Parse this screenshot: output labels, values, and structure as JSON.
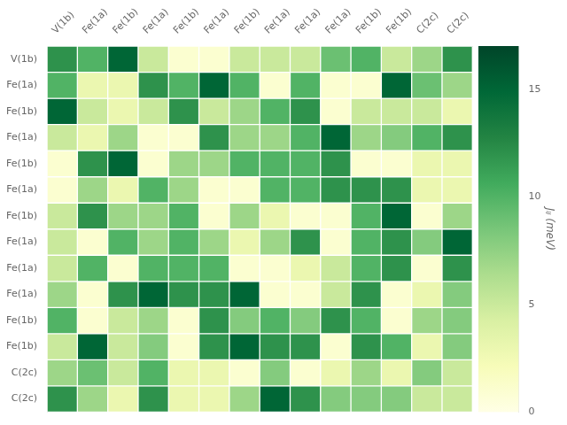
{
  "chart_data": {
    "type": "heatmap",
    "categories": [
      "V(1b)",
      "Fe(1a)",
      "Fe(1b)",
      "Fe(1a)",
      "Fe(1b)",
      "Fe(1a)",
      "Fe(1b)",
      "Fe(1a)",
      "Fe(1a)",
      "Fe(1a)",
      "Fe(1b)",
      "Fe(1b)",
      "C(2c)",
      "C(2c)"
    ],
    "values": [
      [
        12,
        10,
        15,
        5,
        1,
        1,
        5,
        5,
        5,
        9,
        10,
        5,
        7,
        12
      ],
      [
        10,
        3,
        3,
        12,
        10,
        15,
        10,
        1,
        10,
        1,
        1,
        15,
        9,
        7
      ],
      [
        15,
        5,
        3,
        5,
        12,
        5,
        7,
        10,
        12,
        1,
        5,
        5,
        5,
        3
      ],
      [
        5,
        3,
        7,
        1,
        1,
        12,
        7,
        7,
        10,
        15,
        7,
        8,
        10,
        12
      ],
      [
        1,
        12,
        15,
        1,
        7,
        7,
        10,
        10,
        10,
        12,
        1,
        1,
        3,
        3
      ],
      [
        1,
        7,
        3,
        10,
        7,
        1,
        1,
        10,
        10,
        12,
        12,
        12,
        3,
        3
      ],
      [
        5,
        12,
        7,
        7,
        10,
        1,
        7,
        3,
        1,
        1,
        10,
        15,
        1,
        7
      ],
      [
        5,
        1,
        10,
        7,
        10,
        7,
        3,
        7,
        12,
        1,
        10,
        12,
        8,
        15
      ],
      [
        5,
        10,
        1,
        10,
        10,
        10,
        1,
        1,
        3,
        5,
        10,
        12,
        1,
        12
      ],
      [
        7,
        1,
        12,
        15,
        12,
        12,
        15,
        1,
        1,
        5,
        12,
        1,
        3,
        8
      ],
      [
        10,
        1,
        5,
        7,
        1,
        12,
        8,
        10,
        8,
        12,
        10,
        1,
        7,
        8
      ],
      [
        5,
        15,
        5,
        8,
        1,
        12,
        15,
        12,
        12,
        1,
        12,
        10,
        3,
        8
      ],
      [
        7,
        9,
        5,
        10,
        3,
        3,
        1,
        8,
        1,
        3,
        7,
        3,
        8,
        5
      ],
      [
        12,
        7,
        3,
        12,
        3,
        3,
        7,
        15,
        12,
        8,
        8,
        8,
        5,
        5
      ]
    ],
    "color_range": [
      0,
      17
    ],
    "color_ticks": [
      0,
      5,
      10,
      15
    ],
    "color_label": "Jᵢⱼ (meV)",
    "legend": false
  }
}
